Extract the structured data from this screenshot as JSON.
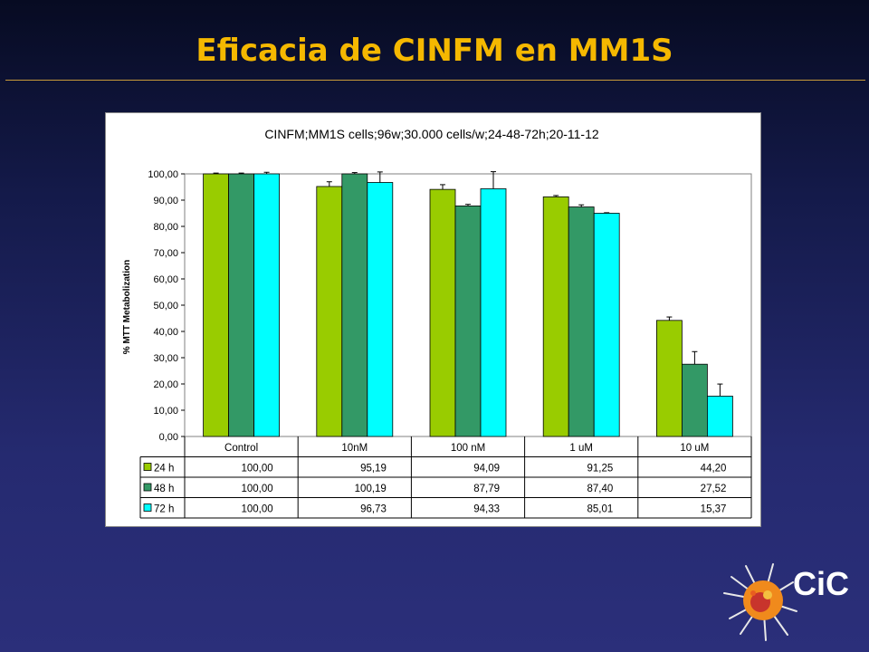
{
  "slide": {
    "title": "Eficacia de CINFM en MM1S"
  },
  "logo": {
    "text": "CiC"
  },
  "colors": {
    "background": "#1f2463",
    "title": "#f5b800",
    "series_24h": "#99cc00",
    "series_48h": "#339966",
    "series_72h": "#00ffff"
  },
  "chart_data": {
    "type": "bar",
    "title": "CINFM;MM1S cells;96w;30.000 cells/w;24-48-72h;20-11-12",
    "ylabel": "% MTT Metabolization",
    "xlabel": "",
    "ylim": [
      0,
      100
    ],
    "ytick_step": 10,
    "ytick_labels": [
      "0,00",
      "10,00",
      "20,00",
      "30,00",
      "40,00",
      "50,00",
      "60,00",
      "70,00",
      "80,00",
      "90,00",
      "100,00"
    ],
    "grid": false,
    "legend": "data-table",
    "categories": [
      "Control",
      "10nM",
      "100 nM",
      "1 uM",
      "10 uM"
    ],
    "series": [
      {
        "name": "24 h",
        "color": "#99cc00",
        "values": [
          100.0,
          95.19,
          94.09,
          91.25,
          44.2
        ],
        "labels": [
          "100,00",
          "95,19",
          "94,09",
          "91,25",
          "44,20"
        ],
        "error": [
          0.3,
          1.8,
          1.8,
          0.5,
          1.3
        ]
      },
      {
        "name": "48 h",
        "color": "#339966",
        "values": [
          100.0,
          100.19,
          87.79,
          87.4,
          27.52
        ],
        "labels": [
          "100,00",
          "100,19",
          "87,79",
          "87,40",
          "27,52"
        ],
        "error": [
          0.3,
          0.3,
          0.6,
          0.8,
          4.8
        ]
      },
      {
        "name": "72 h",
        "color": "#00ffff",
        "values": [
          100.0,
          96.73,
          94.33,
          85.01,
          15.37
        ],
        "labels": [
          "100,00",
          "96,73",
          "94,33",
          "85,01",
          "15,37"
        ],
        "error": [
          0.6,
          4.0,
          6.5,
          0.2,
          4.6
        ]
      }
    ]
  }
}
